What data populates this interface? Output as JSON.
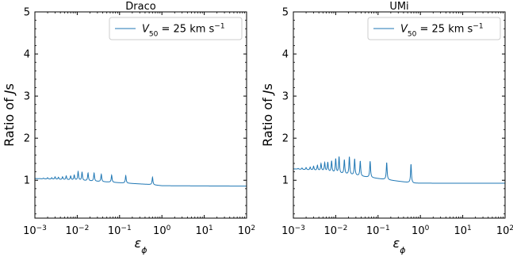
{
  "chart_data": [
    {
      "type": "line",
      "title": "Draco",
      "xlabel": "ε_ϕ",
      "ylabel": "Ratio of Js",
      "xscale": "log",
      "xlim": [
        0.001,
        100
      ],
      "ylim": [
        0.1,
        5
      ],
      "yticks": [
        "1",
        "2",
        "3",
        "4",
        "5"
      ],
      "xticks": [
        "10^-3",
        "10^-2",
        "10^-1",
        "10^0",
        "10^1",
        "10^2"
      ],
      "legend_position": "top-right",
      "color": "#1f77b4",
      "series": [
        {
          "name": "V_50 = 25 km s^-1",
          "baseline": [
            [
              0.001,
              1.04
            ],
            [
              0.01,
              1.0
            ],
            [
              0.1,
              0.94
            ],
            [
              0.5,
              0.9
            ],
            [
              1,
              0.87
            ],
            [
              100,
              0.86
            ]
          ],
          "peaks": [
            [
              0.0013,
              1.04
            ],
            [
              0.0016,
              1.05
            ],
            [
              0.002,
              1.06
            ],
            [
              0.0025,
              1.06
            ],
            [
              0.003,
              1.08
            ],
            [
              0.0036,
              1.07
            ],
            [
              0.0045,
              1.08
            ],
            [
              0.0055,
              1.1
            ],
            [
              0.007,
              1.1
            ],
            [
              0.0085,
              1.12
            ],
            [
              0.0105,
              1.2
            ],
            [
              0.013,
              1.19
            ],
            [
              0.018,
              1.17
            ],
            [
              0.025,
              1.17
            ],
            [
              0.037,
              1.14
            ],
            [
              0.065,
              1.12
            ],
            [
              0.14,
              1.11
            ],
            [
              0.6,
              1.07
            ]
          ]
        }
      ]
    },
    {
      "type": "line",
      "title": "UMi",
      "xlabel": "ε_ϕ",
      "ylabel": "Ratio of Js",
      "xscale": "log",
      "xlim": [
        0.001,
        100
      ],
      "ylim": [
        0.1,
        5
      ],
      "yticks": [
        "1",
        "2",
        "3",
        "4",
        "5"
      ],
      "xticks": [
        "10^-3",
        "10^-2",
        "10^-1",
        "10^0",
        "10^1",
        "10^2"
      ],
      "legend_position": "top-right",
      "color": "#1f77b4",
      "series": [
        {
          "name": "V_50 = 25 km s^-1",
          "baseline": [
            [
              0.001,
              1.27
            ],
            [
              0.005,
              1.22
            ],
            [
              0.01,
              1.17
            ],
            [
              0.05,
              1.08
            ],
            [
              0.2,
              1.0
            ],
            [
              0.7,
              0.93
            ],
            [
              100,
              0.93
            ]
          ],
          "peaks": [
            [
              0.0013,
              1.28
            ],
            [
              0.0016,
              1.29
            ],
            [
              0.002,
              1.3
            ],
            [
              0.0025,
              1.31
            ],
            [
              0.003,
              1.33
            ],
            [
              0.0037,
              1.35
            ],
            [
              0.0045,
              1.39
            ],
            [
              0.0055,
              1.41
            ],
            [
              0.0065,
              1.42
            ],
            [
              0.008,
              1.45
            ],
            [
              0.01,
              1.5
            ],
            [
              0.012,
              1.55
            ],
            [
              0.016,
              1.48
            ],
            [
              0.021,
              1.55
            ],
            [
              0.028,
              1.5
            ],
            [
              0.038,
              1.45
            ],
            [
              0.065,
              1.45
            ],
            [
              0.16,
              1.42
            ],
            [
              0.6,
              1.38
            ]
          ]
        }
      ]
    }
  ]
}
